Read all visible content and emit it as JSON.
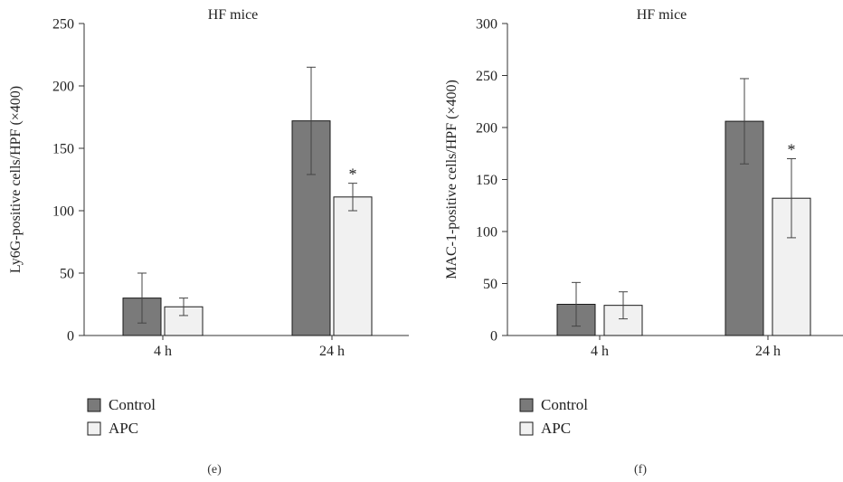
{
  "chart_data": [
    {
      "type": "bar",
      "panel_label": "(e)",
      "title": "HF mice",
      "ylabel": "Ly6G-positive cells/HPF (×400)",
      "xlabel": "",
      "categories": [
        "4 h",
        "24 h"
      ],
      "ylim": [
        0,
        250
      ],
      "yticks": [
        0,
        50,
        100,
        150,
        200,
        250
      ],
      "grid": false,
      "legend_placement": "bottom-left",
      "series": [
        {
          "name": "Control",
          "color": "#7a7a7a",
          "values": [
            30,
            172
          ],
          "errors": [
            20,
            43
          ],
          "annotations": [
            "",
            ""
          ]
        },
        {
          "name": "APC",
          "color": "#f1f1f1",
          "values": [
            23,
            111
          ],
          "errors": [
            7,
            11
          ],
          "annotations": [
            "",
            "*"
          ]
        }
      ]
    },
    {
      "type": "bar",
      "panel_label": "(f)",
      "title": "HF mice",
      "ylabel": "MAC-1-positive cells/HPF (×400)",
      "xlabel": "",
      "categories": [
        "4 h",
        "24 h"
      ],
      "ylim": [
        0,
        300
      ],
      "yticks": [
        0,
        50,
        100,
        150,
        200,
        250,
        300
      ],
      "grid": false,
      "legend_placement": "bottom-left",
      "series": [
        {
          "name": "Control",
          "color": "#7a7a7a",
          "values": [
            30,
            206
          ],
          "errors": [
            21,
            41
          ],
          "annotations": [
            "",
            ""
          ]
        },
        {
          "name": "APC",
          "color": "#f1f1f1",
          "values": [
            29,
            132
          ],
          "errors": [
            13,
            38
          ],
          "annotations": [
            "",
            "*"
          ]
        }
      ]
    }
  ]
}
